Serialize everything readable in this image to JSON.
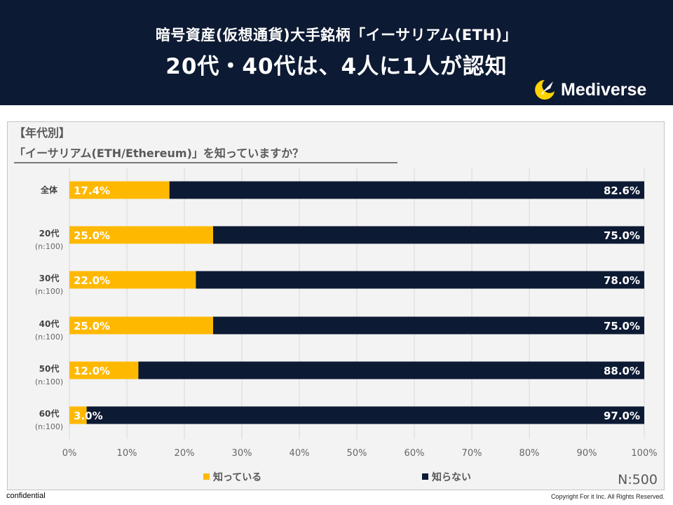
{
  "header": {
    "title_line1": "暗号資産(仮想通貨)大手銘柄「イーサリアム(ETH)」",
    "title_line2": "20代・40代は、4人に1人が認知",
    "logo_text": "Mediverse"
  },
  "question": {
    "label": "【年代別】",
    "text": "「イーサリアム(ETH/Ethereum)」を知っていますか？"
  },
  "chart_data": {
    "type": "bar",
    "orientation": "horizontal",
    "stacked": true,
    "categories": [
      {
        "label": "全体",
        "sub": ""
      },
      {
        "label": "20代",
        "sub": "(n:100)"
      },
      {
        "label": "30代",
        "sub": "(n:100)"
      },
      {
        "label": "40代",
        "sub": "(n:100)"
      },
      {
        "label": "50代",
        "sub": "(n:100)"
      },
      {
        "label": "60代",
        "sub": "(n:100)"
      }
    ],
    "series": [
      {
        "name": "知っている",
        "color": "#ffb800",
        "values": [
          17.4,
          25.0,
          22.0,
          25.0,
          12.0,
          3.0
        ],
        "value_labels": [
          "17.4%",
          "25.0%",
          "22.0%",
          "25.0%",
          "12.0%",
          "3.0%"
        ]
      },
      {
        "name": "知らない",
        "color": "#0d1a33",
        "values": [
          82.6,
          75.0,
          78.0,
          75.0,
          88.0,
          97.0
        ],
        "value_labels": [
          "82.6%",
          "75.0%",
          "78.0%",
          "75.0%",
          "88.0%",
          "97.0%"
        ]
      }
    ],
    "xlim": [
      0,
      100
    ],
    "xticks": [
      0,
      10,
      20,
      30,
      40,
      50,
      60,
      70,
      80,
      90,
      100
    ],
    "xtick_labels": [
      "0%",
      "10%",
      "20%",
      "30%",
      "40%",
      "50%",
      "60%",
      "70%",
      "80%",
      "90%",
      "100%"
    ],
    "grid": true,
    "legend_position": "bottom",
    "sample_size": "N:500"
  },
  "footer": {
    "left": "confidential",
    "right": "Copyright For it Inc. All Rights Reserved."
  }
}
